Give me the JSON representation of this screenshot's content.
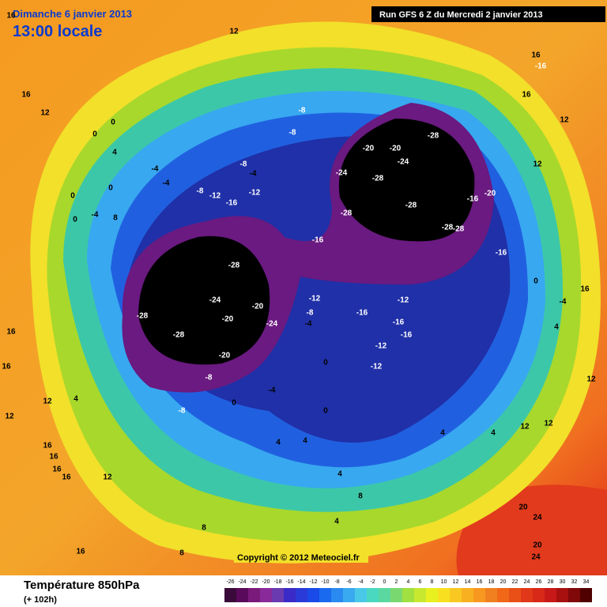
{
  "header": {
    "date": "Dimanche 6 janvier 2013",
    "time": "13:00 locale",
    "run": "Run GFS 6 Z du Mercredi 2 janvier 2013"
  },
  "copyright": "Copyright © 2012 Meteociel.fr",
  "footer": {
    "title": "Température 850hPa",
    "lead": "(+ 102h)"
  },
  "colorbar": {
    "ticks": [
      -26,
      -24,
      -22,
      -20,
      -18,
      -16,
      -14,
      -12,
      -10,
      -8,
      -6,
      -4,
      -2,
      0,
      2,
      4,
      6,
      8,
      10,
      12,
      14,
      16,
      18,
      20,
      22,
      24,
      26,
      28,
      30,
      32,
      34
    ]
  },
  "map_labels": [
    12,
    16,
    12,
    0,
    0,
    4,
    -4,
    -4,
    0,
    0,
    -4,
    8,
    0,
    -8,
    -12,
    -16,
    -12,
    -8,
    -4,
    -8,
    -8,
    -20,
    -20,
    -28,
    -24,
    -28,
    -24,
    -28,
    -28,
    -28,
    -28,
    -20,
    -16,
    -16,
    -16,
    -28,
    -24,
    -28,
    -28,
    -20,
    -20,
    -24,
    -20,
    -8,
    -8,
    -12,
    -8,
    -4,
    -16,
    -12,
    -16,
    -16,
    -12,
    -12,
    0,
    -4,
    0,
    4,
    12,
    12,
    16,
    16,
    16,
    16,
    12,
    0,
    4,
    4,
    4,
    4,
    8,
    8,
    8,
    16,
    4,
    4,
    12,
    12,
    12,
    -4,
    4,
    0,
    16,
    12,
    12,
    16,
    16,
    -16,
    20,
    24,
    20,
    24,
    16,
    16,
    16
  ]
}
